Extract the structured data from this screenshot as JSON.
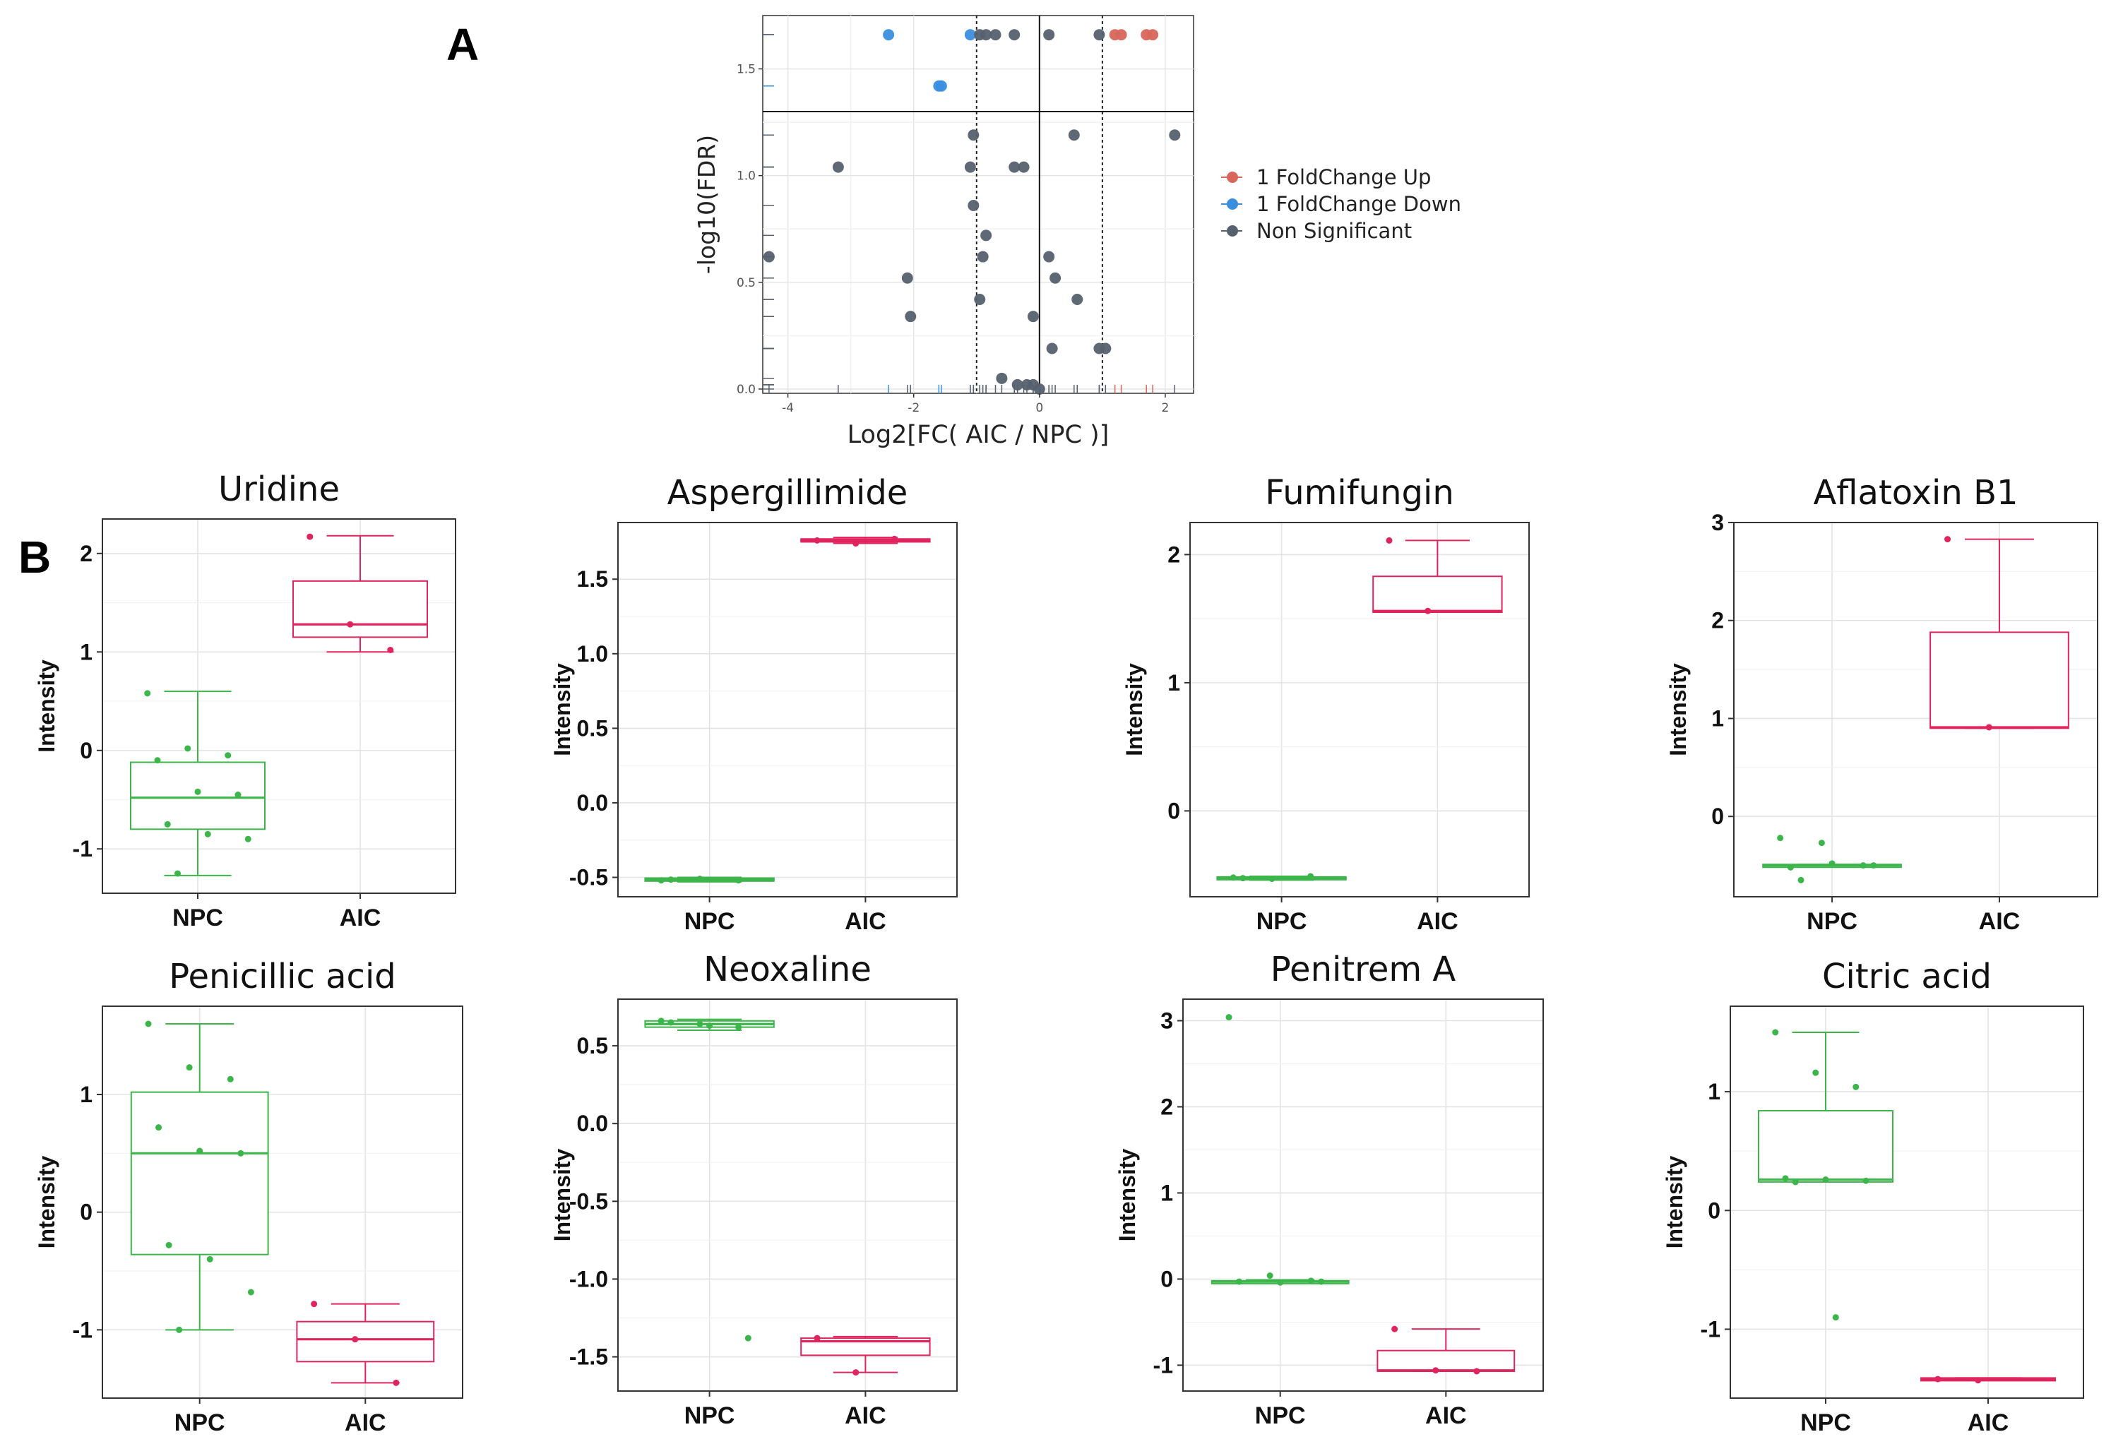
{
  "panels": {
    "a": "A",
    "b": "B"
  },
  "colors": {
    "up": "#d9665a",
    "down": "#3a8ee0",
    "ns": "#56606e",
    "npc": "#3cb54a",
    "aic": "#e0245e"
  },
  "chart_data": [
    {
      "type": "scatter",
      "name": "volcano",
      "xlabel": "Log2[FC( AIC / NPC )]",
      "ylabel": "-log10(FDR)",
      "xlim": [
        -4.4,
        2.45
      ],
      "ylim": [
        -0.02,
        1.75
      ],
      "xticks": [
        -4,
        -2,
        0,
        2
      ],
      "yticks": [
        0.0,
        0.5,
        1.0,
        1.5
      ],
      "xtick_labels": [
        "-4",
        "-2",
        "0",
        "2"
      ],
      "ytick_labels": [
        "0.0",
        "0.5",
        "1.0",
        "1.5"
      ],
      "significance_line_y": 1.3,
      "fc_lines_x": [
        -1,
        1
      ],
      "legend": [
        {
          "label": "1 FoldChange Up",
          "color": "#d9665a"
        },
        {
          "label": "1 FoldChange Down",
          "color": "#3a8ee0"
        },
        {
          "label": "Non Significant",
          "color": "#56606e"
        }
      ],
      "series": [
        {
          "name": "1 FoldChange Up",
          "color": "#d9665a",
          "points": [
            [
              1.2,
              1.66
            ],
            [
              1.3,
              1.66
            ],
            [
              1.7,
              1.66
            ],
            [
              1.8,
              1.66
            ]
          ]
        },
        {
          "name": "1 FoldChange Down",
          "color": "#3a8ee0",
          "points": [
            [
              -2.4,
              1.66
            ],
            [
              -1.1,
              1.66
            ],
            [
              -1.6,
              1.42
            ],
            [
              -1.56,
              1.42
            ]
          ]
        },
        {
          "name": "Non Significant",
          "color": "#56606e",
          "points": [
            [
              -0.95,
              1.66
            ],
            [
              -0.85,
              1.66
            ],
            [
              -0.7,
              1.66
            ],
            [
              -0.4,
              1.66
            ],
            [
              0.15,
              1.66
            ],
            [
              0.95,
              1.66
            ],
            [
              -1.05,
              1.19
            ],
            [
              0.55,
              1.19
            ],
            [
              2.15,
              1.19
            ],
            [
              -3.2,
              1.04
            ],
            [
              -1.1,
              1.04
            ],
            [
              -0.4,
              1.04
            ],
            [
              -0.25,
              1.04
            ],
            [
              -1.05,
              0.86
            ],
            [
              -0.85,
              0.72
            ],
            [
              -4.3,
              0.62
            ],
            [
              -0.9,
              0.62
            ],
            [
              0.15,
              0.62
            ],
            [
              -2.1,
              0.52
            ],
            [
              0.25,
              0.52
            ],
            [
              -0.95,
              0.42
            ],
            [
              0.6,
              0.42
            ],
            [
              -2.05,
              0.34
            ],
            [
              -0.1,
              0.34
            ],
            [
              0.2,
              0.19
            ],
            [
              0.95,
              0.19
            ],
            [
              1.05,
              0.19
            ],
            [
              -0.6,
              0.05
            ],
            [
              -0.35,
              0.02
            ],
            [
              -0.2,
              0.02
            ],
            [
              -0.1,
              0.02
            ],
            [
              0.0,
              0.0
            ]
          ]
        }
      ]
    },
    {
      "type": "box",
      "title": "Uridine",
      "ylabel": "Intensity",
      "categories": [
        "NPC",
        "AIC"
      ],
      "yticks": [
        -1,
        0,
        1,
        2
      ],
      "ytick_labels": [
        "-1",
        "0",
        "1",
        "2"
      ],
      "ylim": [
        -1.45,
        2.35
      ],
      "boxes": [
        {
          "group": "NPC",
          "q1": -0.8,
          "median": -0.48,
          "q3": -0.12,
          "lower": -1.27,
          "upper": 0.6,
          "points": [
            0.58,
            0.02,
            -0.05,
            -0.1,
            -0.42,
            -0.45,
            -0.75,
            -0.85,
            -0.9,
            -1.25
          ]
        },
        {
          "group": "AIC",
          "q1": 1.15,
          "median": 1.28,
          "q3": 1.72,
          "lower": 1.0,
          "upper": 2.18,
          "points": [
            2.17,
            1.28,
            1.02
          ]
        }
      ]
    },
    {
      "type": "box",
      "title": "Aspergillimide",
      "ylabel": "Intensity",
      "categories": [
        "NPC",
        "AIC"
      ],
      "yticks": [
        -0.5,
        0.0,
        0.5,
        1.0,
        1.5
      ],
      "ytick_labels": [
        "-0.5",
        "0.0",
        "0.5",
        "1.0",
        "1.5"
      ],
      "ylim": [
        -0.63,
        1.88
      ],
      "boxes": [
        {
          "group": "NPC",
          "q1": -0.525,
          "median": -0.515,
          "q3": -0.505,
          "lower": -0.53,
          "upper": -0.5,
          "points": [
            -0.52,
            -0.51,
            -0.52,
            -0.515
          ]
        },
        {
          "group": "AIC",
          "q1": 1.75,
          "median": 1.76,
          "q3": 1.77,
          "lower": 1.74,
          "upper": 1.78,
          "points": [
            1.76,
            1.74,
            1.77
          ]
        }
      ]
    },
    {
      "type": "box",
      "title": "Fumifungin",
      "ylabel": "Intensity",
      "categories": [
        "NPC",
        "AIC"
      ],
      "yticks": [
        0,
        1,
        2
      ],
      "ytick_labels": [
        "0",
        "1",
        "2"
      ],
      "ylim": [
        -0.67,
        2.25
      ],
      "boxes": [
        {
          "group": "NPC",
          "q1": -0.535,
          "median": -0.525,
          "q3": -0.515,
          "lower": -0.54,
          "upper": -0.51,
          "points": [
            -0.52,
            -0.53,
            -0.51,
            -0.525
          ]
        },
        {
          "group": "AIC",
          "q1": 1.55,
          "median": 1.56,
          "q3": 1.83,
          "lower": 1.55,
          "upper": 2.11,
          "points": [
            2.11,
            1.56
          ]
        }
      ]
    },
    {
      "type": "box",
      "title": "Aflatoxin B1",
      "ylabel": "Intensity",
      "categories": [
        "NPC",
        "AIC"
      ],
      "yticks": [
        0,
        1,
        2,
        3
      ],
      "ytick_labels": [
        "0",
        "1",
        "2",
        "3"
      ],
      "ylim": [
        -0.82,
        3.0
      ],
      "boxes": [
        {
          "group": "NPC",
          "q1": -0.51,
          "median": -0.5,
          "q3": -0.49,
          "lower": -0.51,
          "upper": -0.49,
          "points": [
            -0.22,
            -0.27,
            -0.5,
            -0.52,
            -0.48,
            -0.5,
            -0.65
          ]
        },
        {
          "group": "AIC",
          "q1": 0.9,
          "median": 0.91,
          "q3": 1.88,
          "lower": 0.9,
          "upper": 2.83,
          "points": [
            2.83,
            0.91
          ]
        }
      ]
    },
    {
      "type": "box",
      "title": "Penicillic acid",
      "ylabel": "Intensity",
      "categories": [
        "NPC",
        "AIC"
      ],
      "yticks": [
        -1,
        0,
        1
      ],
      "ytick_labels": [
        "-1",
        "0",
        "1"
      ],
      "ylim": [
        -1.58,
        1.75
      ],
      "boxes": [
        {
          "group": "NPC",
          "q1": -0.36,
          "median": 0.5,
          "q3": 1.02,
          "lower": -1.0,
          "upper": 1.6,
          "points": [
            1.6,
            1.23,
            1.13,
            0.72,
            0.52,
            0.5,
            -0.28,
            -0.4,
            -0.68,
            -1.0
          ]
        },
        {
          "group": "AIC",
          "q1": -1.27,
          "median": -1.08,
          "q3": -0.93,
          "lower": -1.45,
          "upper": -0.78,
          "points": [
            -0.78,
            -1.08,
            -1.45
          ]
        }
      ]
    },
    {
      "type": "box",
      "title": "Neoxaline",
      "ylabel": "Intensity",
      "categories": [
        "NPC",
        "AIC"
      ],
      "yticks": [
        -1.5,
        -1.0,
        -0.5,
        0.0,
        0.5
      ],
      "ytick_labels": [
        "-1.5",
        "-1.0",
        "-0.5",
        "0.0",
        "0.5"
      ],
      "ylim": [
        -1.72,
        0.8
      ],
      "boxes": [
        {
          "group": "NPC",
          "q1": 0.62,
          "median": 0.64,
          "q3": 0.66,
          "lower": 0.6,
          "upper": 0.67,
          "points": [
            0.66,
            0.64,
            0.62,
            0.65,
            0.63,
            -1.38
          ]
        },
        {
          "group": "AIC",
          "q1": -1.49,
          "median": -1.4,
          "q3": -1.38,
          "lower": -1.6,
          "upper": -1.37,
          "points": [
            -1.38,
            -1.6
          ]
        }
      ]
    },
    {
      "type": "box",
      "title": "Penitrem A",
      "ylabel": "Intensity",
      "categories": [
        "NPC",
        "AIC"
      ],
      "yticks": [
        -1,
        0,
        1,
        2,
        3
      ],
      "ytick_labels": [
        "-1",
        "0",
        "1",
        "2",
        "3"
      ],
      "ylim": [
        -1.3,
        3.25
      ],
      "boxes": [
        {
          "group": "NPC",
          "q1": -0.04,
          "median": -0.03,
          "q3": -0.02,
          "lower": -0.05,
          "upper": -0.01,
          "points": [
            3.04,
            0.04,
            -0.02,
            -0.03,
            -0.04,
            -0.03
          ]
        },
        {
          "group": "AIC",
          "q1": -1.07,
          "median": -1.06,
          "q3": -0.83,
          "lower": -1.07,
          "upper": -0.58,
          "points": [
            -0.58,
            -1.06,
            -1.07
          ]
        }
      ]
    },
    {
      "type": "box",
      "title": "Citric acid",
      "ylabel": "Intensity",
      "categories": [
        "NPC",
        "AIC"
      ],
      "yticks": [
        -1,
        0,
        1
      ],
      "ytick_labels": [
        "-1",
        "0",
        "1"
      ],
      "ylim": [
        -1.58,
        1.72
      ],
      "boxes": [
        {
          "group": "NPC",
          "q1": 0.24,
          "median": 0.26,
          "q3": 0.84,
          "lower": 0.24,
          "upper": 1.5,
          "points": [
            1.5,
            1.16,
            1.04,
            0.27,
            0.26,
            0.25,
            0.24,
            -0.9
          ]
        },
        {
          "group": "AIC",
          "q1": -1.43,
          "median": -1.42,
          "q3": -1.41,
          "lower": -1.43,
          "upper": -1.41,
          "points": [
            -1.42,
            -1.43
          ]
        }
      ]
    }
  ]
}
